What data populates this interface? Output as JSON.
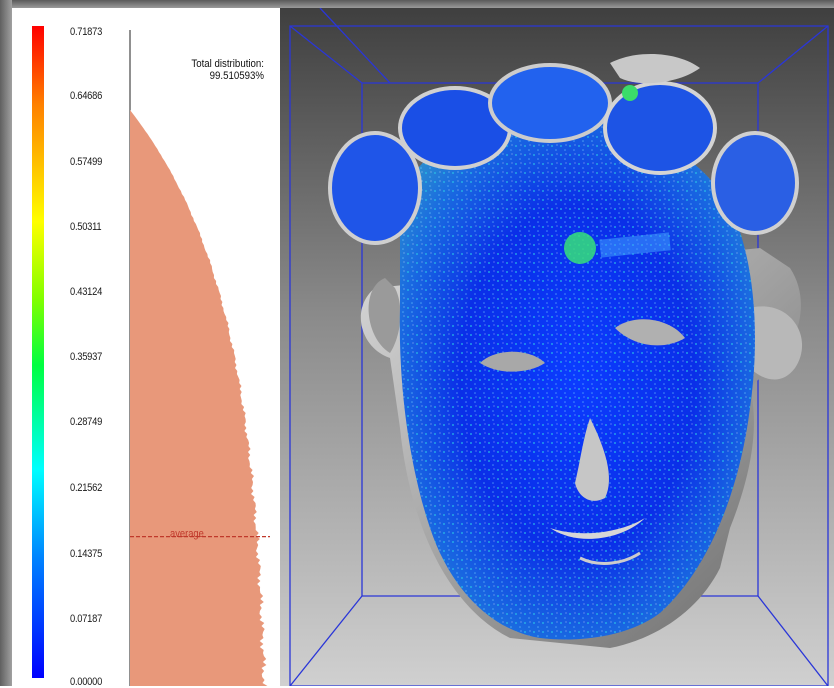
{
  "legend": {
    "ticks": [
      "0.71873",
      "0.64686",
      "0.57499",
      "0.50311",
      "0.43124",
      "0.35937",
      "0.28749",
      "0.21562",
      "0.14375",
      "0.07187",
      "0.00000"
    ]
  },
  "distribution": {
    "label": "Total distribution:",
    "value": "99.510593%"
  },
  "average": {
    "label": "average",
    "value": 0.14375,
    "line_color": "#c0392b"
  },
  "colors": {
    "histogram_fill": "#e8987a",
    "bounding_box": "#2a36d8",
    "scale_top": "#ff0000",
    "scale_bottom": "#0000ff"
  },
  "scale": {
    "min": 0.0,
    "max": 0.71873
  }
}
